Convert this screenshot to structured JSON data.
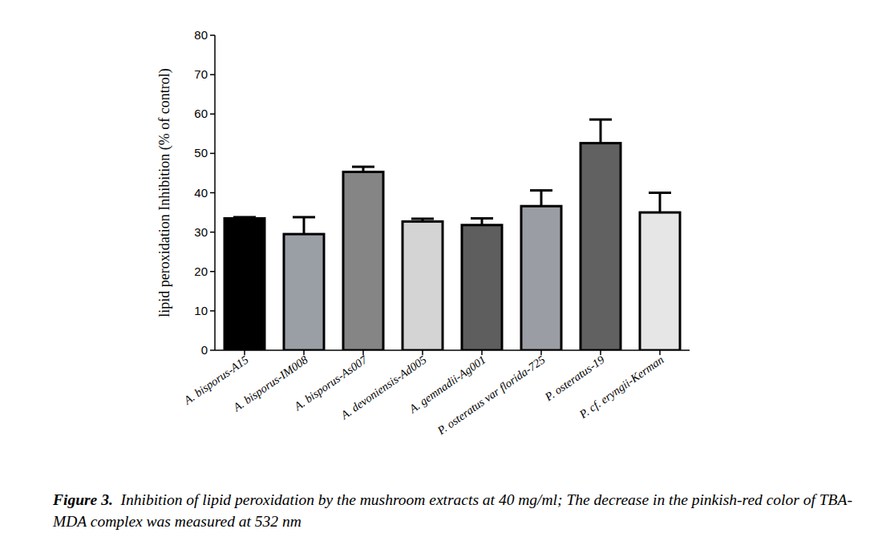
{
  "chart_data": {
    "type": "bar",
    "title": "Figure 3.",
    "subtitle": "Inhibition of lipid peroxidation by the mushroom extracts at 40 mg/ml; The decrease in the pinkish-red color of TBA-MDA complex was measured at 532 nm",
    "y_label": "lipid peroxidation Inhibition (% of control)",
    "categories": [
      "A. bisporus-A15",
      "A. bisporus-IM008",
      "A. bisporus-As007",
      "A. devoniensis-Ad005",
      "A. gemnadii-Ag001",
      "P. osteratus var florida-725",
      "P. osteratus-19",
      "P. cf. eryngii-Kerman"
    ],
    "values": [
      33.5,
      29.5,
      45.3,
      32.7,
      31.8,
      36.6,
      52.6,
      35.0
    ],
    "errors": [
      0.3,
      4.3,
      1.3,
      0.7,
      1.7,
      4.0,
      6.0,
      5.0
    ],
    "colors": [
      "#000000",
      "#9a9ea5",
      "#858585",
      "#d4d4d4",
      "#5e5e5e",
      "#9a9ea4",
      "#616161",
      "#e6e6e6"
    ],
    "ylim": [
      0,
      80
    ],
    "yticks": [
      0,
      10,
      20,
      30,
      40,
      50,
      60,
      70,
      80
    ],
    "grid": false
  }
}
